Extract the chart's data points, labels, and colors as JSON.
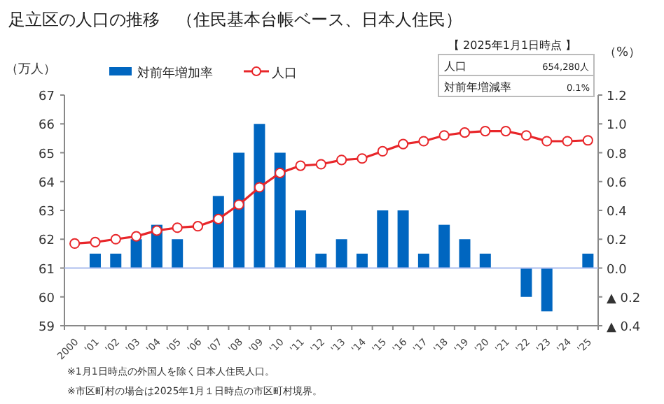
{
  "chart_data": {
    "type": "bar",
    "title": "足立区の人口の推移　（住民基本台帳ベース、日本人住民）",
    "ylabel": "（万人）",
    "y2label": "（%）",
    "categories": [
      "2000",
      "'01",
      "'02",
      "'03",
      "'04",
      "'05",
      "'06",
      "'07",
      "'08",
      "'09",
      "'10",
      "'11",
      "'12",
      "'13",
      "'14",
      "'15",
      "'16",
      "'17",
      "'18",
      "'19",
      "'20",
      "'21",
      "'22",
      "'23",
      "'24",
      "'25"
    ],
    "series": [
      {
        "name": "対前年増加率",
        "axis": "y2",
        "color": "#0066c0",
        "values": [
          null,
          0.1,
          0.1,
          0.2,
          0.3,
          0.2,
          0,
          0.5,
          0.8,
          1.0,
          0.8,
          0.4,
          0.1,
          0.2,
          0.1,
          0.4,
          0.4,
          0.1,
          0.3,
          0.2,
          0.1,
          0,
          -0.2,
          -0.3,
          0,
          0.1
        ]
      },
      {
        "name": "人口",
        "type": "line",
        "color": "#e8262a",
        "marker": "circle",
        "values": [
          61.85,
          61.9,
          62.0,
          62.1,
          62.3,
          62.4,
          62.45,
          62.7,
          63.2,
          63.8,
          64.3,
          64.55,
          64.6,
          64.75,
          64.8,
          65.05,
          65.3,
          65.4,
          65.6,
          65.7,
          65.75,
          65.75,
          65.6,
          65.4,
          65.4,
          65.43
        ]
      }
    ],
    "ylim": [
      59,
      67
    ],
    "yticks": [
      59,
      60,
      61,
      62,
      63,
      64,
      65,
      66,
      67
    ],
    "y2lim": [
      -0.4,
      1.2
    ],
    "y2ticks": [
      {
        "value": -0.4,
        "label": "▲ 0.4"
      },
      {
        "value": -0.2,
        "label": "▲ 0.2"
      },
      {
        "value": 0,
        "label": "0.0"
      },
      {
        "value": 0.2,
        "label": "0.2"
      },
      {
        "value": 0.4,
        "label": "0.4"
      },
      {
        "value": 0.6,
        "label": "0.6"
      },
      {
        "value": 0.8,
        "label": "0.8"
      },
      {
        "value": 1.0,
        "label": "1.0"
      },
      {
        "value": 1.2,
        "label": "1.2"
      }
    ],
    "ref_lines": [
      {
        "axis": "y2",
        "value": 0,
        "color": "#aabbee"
      }
    ],
    "legend": "top left",
    "grid": false,
    "annotations": [
      "【 2025年1月1日時点 】",
      "人口",
      "654,280人",
      "対前年増減率",
      "0.1%",
      "※1月1日時点の外国人を除く日本人住民人口。",
      "※市区町村の場合は2025年1月１日時点の市区町村境界。"
    ]
  }
}
